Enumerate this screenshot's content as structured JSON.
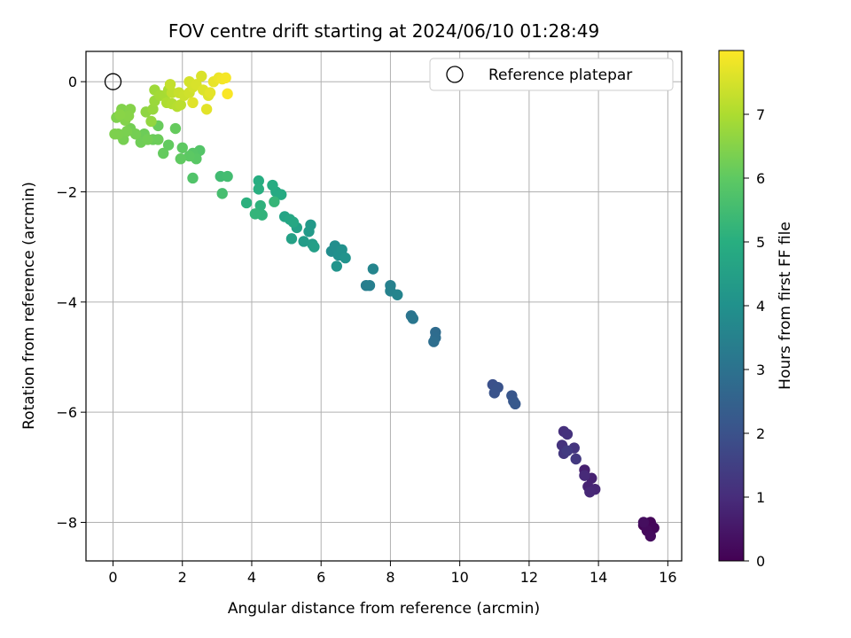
{
  "chart_data": {
    "type": "scatter",
    "title": "FOV centre drift starting at 2024/06/10 01:28:49",
    "xlabel": "Angular distance from reference (arcmin)",
    "ylabel": "Rotation from reference (arcmin)",
    "xlim": [
      -0.78,
      16.4
    ],
    "ylim": [
      -8.7,
      0.55
    ],
    "xticks": [
      0,
      2,
      4,
      6,
      8,
      10,
      12,
      14,
      16
    ],
    "yticks": [
      0,
      -2,
      -4,
      -6,
      -8
    ],
    "grid": true,
    "legend": {
      "position": "top-right",
      "entries": [
        "Reference platepar"
      ]
    },
    "reference_point": {
      "x": 0,
      "y": 0,
      "marker": "open-circle",
      "label": "Reference platepar"
    },
    "colorbar": {
      "label": "Hours from first FF file",
      "colormap": "viridis",
      "range": [
        0,
        8.0
      ],
      "ticks": [
        0,
        1,
        2,
        3,
        4,
        5,
        6,
        7
      ]
    },
    "series": [
      {
        "color_by": "hours",
        "points": [
          {
            "x": 15.3,
            "y": -8.05,
            "hours": 0.05
          },
          {
            "x": 15.5,
            "y": -8.0,
            "hours": 0.1
          },
          {
            "x": 15.6,
            "y": -8.1,
            "hours": 0.15
          },
          {
            "x": 15.4,
            "y": -8.15,
            "hours": 0.2
          },
          {
            "x": 15.5,
            "y": -8.25,
            "hours": 0.25
          },
          {
            "x": 15.3,
            "y": -8.0,
            "hours": 0.3
          },
          {
            "x": 13.6,
            "y": -7.05,
            "hours": 0.7
          },
          {
            "x": 13.8,
            "y": -7.2,
            "hours": 0.75
          },
          {
            "x": 13.7,
            "y": -7.35,
            "hours": 0.8
          },
          {
            "x": 13.9,
            "y": -7.4,
            "hours": 0.85
          },
          {
            "x": 13.75,
            "y": -7.45,
            "hours": 0.9
          },
          {
            "x": 13.6,
            "y": -7.15,
            "hours": 0.95
          },
          {
            "x": 13.0,
            "y": -6.35,
            "hours": 1.1
          },
          {
            "x": 13.1,
            "y": -6.4,
            "hours": 1.15
          },
          {
            "x": 12.95,
            "y": -6.6,
            "hours": 1.2
          },
          {
            "x": 13.3,
            "y": -6.65,
            "hours": 1.25
          },
          {
            "x": 13.0,
            "y": -6.75,
            "hours": 1.3
          },
          {
            "x": 13.35,
            "y": -6.85,
            "hours": 1.35
          },
          {
            "x": 13.1,
            "y": -6.7,
            "hours": 1.4
          },
          {
            "x": 10.95,
            "y": -5.5,
            "hours": 2.0
          },
          {
            "x": 11.1,
            "y": -5.55,
            "hours": 2.05
          },
          {
            "x": 11.0,
            "y": -5.65,
            "hours": 2.1
          },
          {
            "x": 11.5,
            "y": -5.7,
            "hours": 2.15
          },
          {
            "x": 11.55,
            "y": -5.8,
            "hours": 2.2
          },
          {
            "x": 11.6,
            "y": -5.85,
            "hours": 2.25
          },
          {
            "x": 9.3,
            "y": -4.55,
            "hours": 2.8
          },
          {
            "x": 9.3,
            "y": -4.65,
            "hours": 2.85
          },
          {
            "x": 9.25,
            "y": -4.72,
            "hours": 2.9
          },
          {
            "x": 8.6,
            "y": -4.25,
            "hours": 3.1
          },
          {
            "x": 8.65,
            "y": -4.3,
            "hours": 3.15
          },
          {
            "x": 7.3,
            "y": -3.7,
            "hours": 3.4
          },
          {
            "x": 7.4,
            "y": -3.7,
            "hours": 3.45
          },
          {
            "x": 8.0,
            "y": -3.7,
            "hours": 3.5
          },
          {
            "x": 8.0,
            "y": -3.8,
            "hours": 3.55
          },
          {
            "x": 8.2,
            "y": -3.87,
            "hours": 3.6
          },
          {
            "x": 7.5,
            "y": -3.4,
            "hours": 3.65
          },
          {
            "x": 6.3,
            "y": -3.08,
            "hours": 3.9
          },
          {
            "x": 6.4,
            "y": -2.98,
            "hours": 3.95
          },
          {
            "x": 6.5,
            "y": -3.15,
            "hours": 4.0
          },
          {
            "x": 6.6,
            "y": -3.05,
            "hours": 4.05
          },
          {
            "x": 6.7,
            "y": -3.2,
            "hours": 4.1
          },
          {
            "x": 6.45,
            "y": -3.35,
            "hours": 4.15
          },
          {
            "x": 5.7,
            "y": -2.6,
            "hours": 4.3
          },
          {
            "x": 5.65,
            "y": -2.72,
            "hours": 4.35
          },
          {
            "x": 5.5,
            "y": -2.9,
            "hours": 4.4
          },
          {
            "x": 5.75,
            "y": -2.95,
            "hours": 4.45
          },
          {
            "x": 5.8,
            "y": -3.0,
            "hours": 4.5
          },
          {
            "x": 5.3,
            "y": -2.65,
            "hours": 4.55
          },
          {
            "x": 5.15,
            "y": -2.85,
            "hours": 4.6
          },
          {
            "x": 4.95,
            "y": -2.45,
            "hours": 4.7
          },
          {
            "x": 5.1,
            "y": -2.5,
            "hours": 4.75
          },
          {
            "x": 5.2,
            "y": -2.55,
            "hours": 4.8
          },
          {
            "x": 4.7,
            "y": -2.0,
            "hours": 4.85
          },
          {
            "x": 4.85,
            "y": -2.05,
            "hours": 4.9
          },
          {
            "x": 4.6,
            "y": -1.88,
            "hours": 4.95
          },
          {
            "x": 4.2,
            "y": -1.8,
            "hours": 5.0
          },
          {
            "x": 4.2,
            "y": -1.95,
            "hours": 5.05
          },
          {
            "x": 3.85,
            "y": -2.2,
            "hours": 5.1
          },
          {
            "x": 4.25,
            "y": -2.25,
            "hours": 5.15
          },
          {
            "x": 4.3,
            "y": -2.42,
            "hours": 5.2
          },
          {
            "x": 4.1,
            "y": -2.4,
            "hours": 5.25
          },
          {
            "x": 4.65,
            "y": -2.18,
            "hours": 5.3
          },
          {
            "x": 3.1,
            "y": -1.72,
            "hours": 5.5
          },
          {
            "x": 3.3,
            "y": -1.72,
            "hours": 5.55
          },
          {
            "x": 3.15,
            "y": -2.03,
            "hours": 5.6
          },
          {
            "x": 2.3,
            "y": -1.75,
            "hours": 5.8
          },
          {
            "x": 2.5,
            "y": -1.25,
            "hours": 5.85
          },
          {
            "x": 2.3,
            "y": -1.3,
            "hours": 5.9
          },
          {
            "x": 2.4,
            "y": -1.4,
            "hours": 5.95
          },
          {
            "x": 2.2,
            "y": -1.35,
            "hours": 6.0
          },
          {
            "x": 2.0,
            "y": -1.2,
            "hours": 6.02
          },
          {
            "x": 1.95,
            "y": -1.4,
            "hours": 6.05
          },
          {
            "x": 1.6,
            "y": -1.15,
            "hours": 6.08
          },
          {
            "x": 1.45,
            "y": -1.3,
            "hours": 6.1
          },
          {
            "x": 1.8,
            "y": -0.85,
            "hours": 6.12
          },
          {
            "x": 1.3,
            "y": -0.8,
            "hours": 6.15
          },
          {
            "x": 1.15,
            "y": -1.05,
            "hours": 6.18
          },
          {
            "x": 1.3,
            "y": -1.05,
            "hours": 6.2
          },
          {
            "x": 0.9,
            "y": -0.95,
            "hours": 6.22
          },
          {
            "x": 0.8,
            "y": -1.1,
            "hours": 6.25
          },
          {
            "x": 1.0,
            "y": -1.05,
            "hours": 6.28
          },
          {
            "x": 0.5,
            "y": -0.85,
            "hours": 6.3
          },
          {
            "x": 0.65,
            "y": -0.95,
            "hours": 6.32
          },
          {
            "x": 0.3,
            "y": -1.05,
            "hours": 6.35
          },
          {
            "x": 0.4,
            "y": -0.9,
            "hours": 6.38
          },
          {
            "x": 0.15,
            "y": -0.95,
            "hours": 6.4
          },
          {
            "x": 0.05,
            "y": -0.95,
            "hours": 6.42
          },
          {
            "x": 0.1,
            "y": -0.65,
            "hours": 6.45
          },
          {
            "x": 0.25,
            "y": -0.5,
            "hours": 6.48
          },
          {
            "x": 0.35,
            "y": -0.7,
            "hours": 6.5
          },
          {
            "x": 0.5,
            "y": -0.5,
            "hours": 6.52
          },
          {
            "x": 0.45,
            "y": -0.62,
            "hours": 6.55
          },
          {
            "x": 0.2,
            "y": -0.6,
            "hours": 6.58
          },
          {
            "x": 0.95,
            "y": -0.55,
            "hours": 6.65
          },
          {
            "x": 1.1,
            "y": -0.72,
            "hours": 6.7
          },
          {
            "x": 1.15,
            "y": -0.5,
            "hours": 6.75
          },
          {
            "x": 1.2,
            "y": -0.35,
            "hours": 6.8
          },
          {
            "x": 1.2,
            "y": -0.15,
            "hours": 6.85
          },
          {
            "x": 1.35,
            "y": -0.25,
            "hours": 6.9
          },
          {
            "x": 1.5,
            "y": -0.25,
            "hours": 6.95
          },
          {
            "x": 1.6,
            "y": -0.15,
            "hours": 7.0
          },
          {
            "x": 1.55,
            "y": -0.38,
            "hours": 7.05
          },
          {
            "x": 1.7,
            "y": -0.4,
            "hours": 7.1
          },
          {
            "x": 1.85,
            "y": -0.45,
            "hours": 7.15
          },
          {
            "x": 1.95,
            "y": -0.42,
            "hours": 7.2
          },
          {
            "x": 1.7,
            "y": -0.2,
            "hours": 7.25
          },
          {
            "x": 1.65,
            "y": -0.05,
            "hours": 7.3
          },
          {
            "x": 1.9,
            "y": -0.2,
            "hours": 7.35
          },
          {
            "x": 2.05,
            "y": -0.25,
            "hours": 7.4
          },
          {
            "x": 2.2,
            "y": -0.2,
            "hours": 7.45
          },
          {
            "x": 2.3,
            "y": -0.1,
            "hours": 7.5
          },
          {
            "x": 2.2,
            "y": 0.0,
            "hours": 7.52
          },
          {
            "x": 2.4,
            "y": -0.05,
            "hours": 7.55
          },
          {
            "x": 2.55,
            "y": 0.1,
            "hours": 7.58
          },
          {
            "x": 2.6,
            "y": -0.15,
            "hours": 7.6
          },
          {
            "x": 2.75,
            "y": -0.25,
            "hours": 7.62
          },
          {
            "x": 2.3,
            "y": -0.38,
            "hours": 7.65
          },
          {
            "x": 2.7,
            "y": -0.5,
            "hours": 7.68
          },
          {
            "x": 2.8,
            "y": -0.2,
            "hours": 7.7
          },
          {
            "x": 2.9,
            "y": 0.0,
            "hours": 7.75
          },
          {
            "x": 3.05,
            "y": 0.07,
            "hours": 7.8
          },
          {
            "x": 3.15,
            "y": 0.05,
            "hours": 7.85
          },
          {
            "x": 3.25,
            "y": 0.07,
            "hours": 7.9
          },
          {
            "x": 3.3,
            "y": -0.22,
            "hours": 7.95
          }
        ]
      }
    ]
  }
}
